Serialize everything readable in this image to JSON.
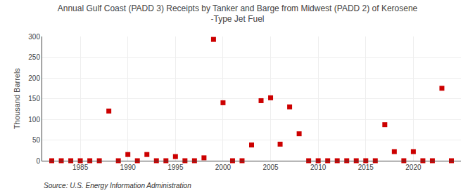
{
  "chart_data": {
    "type": "scatter",
    "title": "Annual Gulf Coast (PADD 3) Receipts by Tanker and Barge from Midwest (PADD 2) of Kerosene\n-Type Jet Fuel",
    "ylabel": "Thousand Barrels",
    "annotations": [
      "Source: U.S. Energy Information Administration"
    ],
    "color": "#cc0000",
    "marker": "square",
    "grid": true,
    "xlim": [
      1981,
      2025
    ],
    "ylim": [
      0,
      300
    ],
    "xticks": [
      1985,
      1990,
      1995,
      2000,
      2005,
      2010,
      2015,
      2020
    ],
    "yticks": [
      0,
      50,
      100,
      150,
      200,
      250,
      300
    ],
    "x": [
      1982,
      1983,
      1984,
      1985,
      1986,
      1987,
      1988,
      1989,
      1990,
      1991,
      1992,
      1993,
      1994,
      1995,
      1996,
      1997,
      1998,
      1999,
      2000,
      2001,
      2002,
      2003,
      2004,
      2005,
      2006,
      2007,
      2008,
      2009,
      2010,
      2011,
      2012,
      2013,
      2014,
      2015,
      2016,
      2017,
      2018,
      2019,
      2020,
      2021,
      2022,
      2023,
      2024
    ],
    "values": [
      0,
      0,
      0,
      0,
      0,
      0,
      120,
      0,
      15,
      0,
      15,
      0,
      0,
      10,
      0,
      0,
      7,
      293,
      140,
      0,
      0,
      38,
      145,
      152,
      40,
      130,
      65,
      0,
      0,
      0,
      0,
      0,
      0,
      0,
      0,
      87,
      22,
      0,
      22,
      0,
      0,
      175,
      0
    ]
  }
}
